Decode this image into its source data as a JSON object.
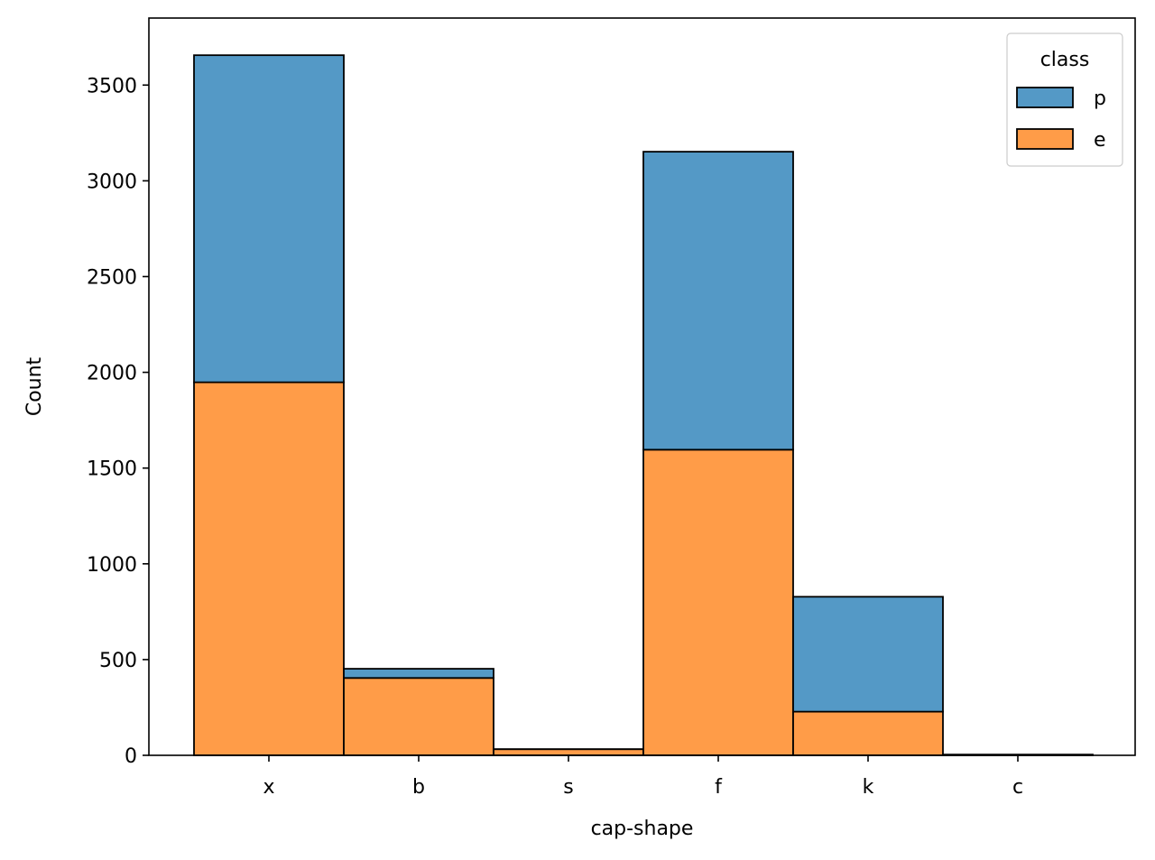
{
  "chart_data": {
    "type": "bar",
    "stacked": true,
    "categories": [
      "x",
      "b",
      "s",
      "f",
      "k",
      "c"
    ],
    "series": [
      {
        "name": "e",
        "color": "#ff9c48",
        "values": [
          1948,
          404,
          32,
          1596,
          228,
          0
        ]
      },
      {
        "name": "p",
        "color": "#5499c6",
        "values": [
          1708,
          48,
          0,
          1556,
          600,
          4
        ]
      }
    ],
    "xlabel": "cap-shape",
    "ylabel": "Count",
    "ylim": [
      0,
      3850
    ],
    "yticks": [
      0,
      500,
      1000,
      1500,
      2000,
      2500,
      3000,
      3500
    ],
    "legend": {
      "title": "class",
      "position": "top-right",
      "entries": [
        "p",
        "e"
      ]
    },
    "grid": false
  }
}
